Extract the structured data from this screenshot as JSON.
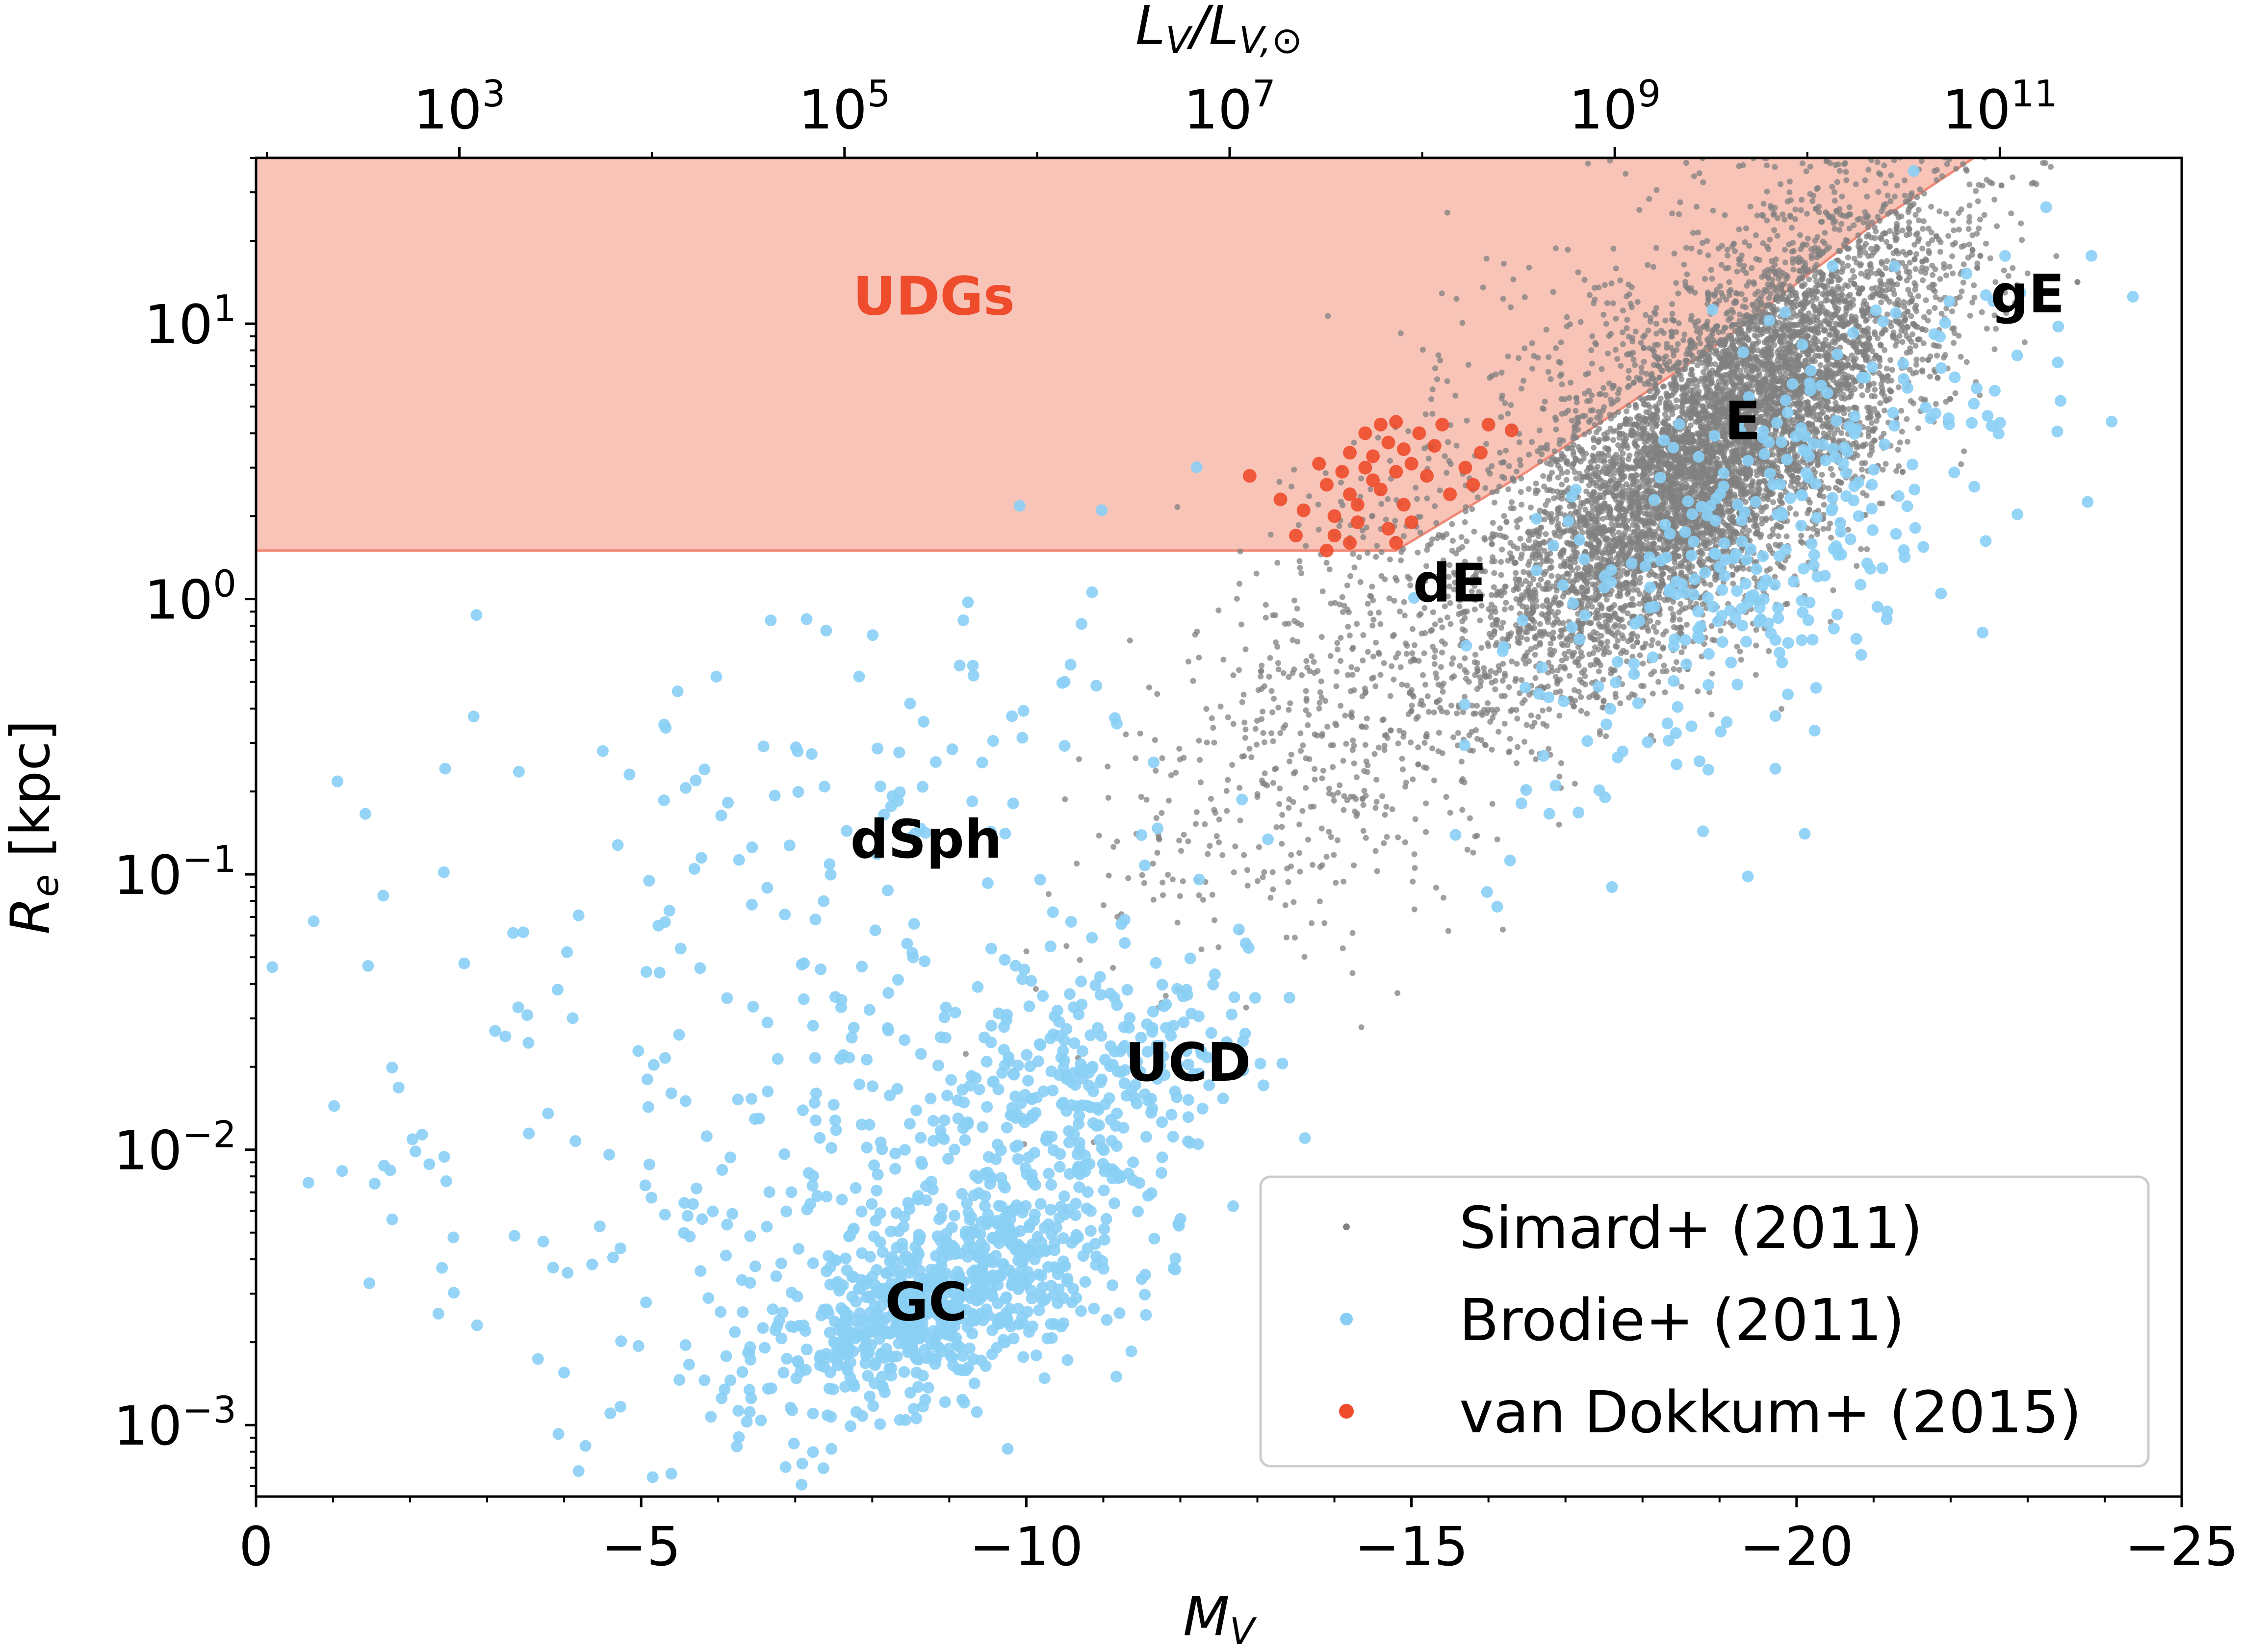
{
  "chart_data": {
    "type": "scatter",
    "xlabel": "M_V",
    "ylabel": "R_e [kpc]",
    "top_xlabel": "L_V/L_V,⊙",
    "xlim": [
      0,
      -25
    ],
    "ylim": [
      0.00055,
      40
    ],
    "yscale": "log",
    "xticks": [
      0,
      -5,
      -10,
      -15,
      -20,
      -25
    ],
    "xtick_labels": [
      "0",
      "−5",
      "−10",
      "−15",
      "−20",
      "−25"
    ],
    "yticks": [
      {
        "value": 10,
        "base": "10",
        "exp": "1"
      },
      {
        "value": 1,
        "base": "10",
        "exp": "0"
      },
      {
        "value": 0.1,
        "base": "10",
        "exp": "−1"
      },
      {
        "value": 0.01,
        "base": "10",
        "exp": "−2"
      },
      {
        "value": 0.001,
        "base": "10",
        "exp": "−3"
      }
    ],
    "top_ticks": [
      {
        "mv": -2.64,
        "base": "10",
        "exp": "3"
      },
      {
        "mv": -7.64,
        "base": "10",
        "exp": "5"
      },
      {
        "mv": -12.64,
        "base": "10",
        "exp": "7"
      },
      {
        "mv": -17.64,
        "base": "10",
        "exp": "9"
      },
      {
        "mv": -22.64,
        "base": "10",
        "exp": "11"
      }
    ],
    "udg_region": {
      "label": "UDGs",
      "color": "#f8c4b8",
      "edge_color": "#f08a78",
      "re_min": 1.5,
      "boundary": [
        [
          0,
          1.5
        ],
        [
          -14.8,
          1.5
        ],
        [
          -16.5,
          2.9
        ],
        [
          -19,
          8.5
        ],
        [
          -21,
          23
        ],
        [
          -22.3,
          40
        ]
      ]
    },
    "region_labels": [
      {
        "text": "UDGs",
        "mv": -8.8,
        "re": 10.8,
        "color": "#ee4c2c"
      },
      {
        "text": "gE",
        "mv": -23.0,
        "re": 11.0,
        "color": "#000000"
      },
      {
        "text": "E",
        "mv": -19.3,
        "re": 3.8,
        "color": "#000000"
      },
      {
        "text": "dE",
        "mv": -15.5,
        "re": 0.98,
        "color": "#000000"
      },
      {
        "text": "dSph",
        "mv": -8.7,
        "re": 0.115,
        "color": "#000000"
      },
      {
        "text": "UCD",
        "mv": -12.1,
        "re": 0.0178,
        "color": "#000000"
      },
      {
        "text": "GC",
        "mv": -8.7,
        "re": 0.0024,
        "color": "#000000"
      }
    ],
    "series": [
      {
        "name": "Simard+ (2011)",
        "color": "#808080",
        "marker": "small-dot",
        "clusters": [
          {
            "mv_center": -19.0,
            "mv_sd": 1.4,
            "logre_center": 0.55,
            "logre_sd": 0.28,
            "slope": 0.22,
            "count": 7000
          },
          {
            "mv_center": -14.5,
            "mv_sd": 1.6,
            "logre_center": -0.3,
            "logre_sd": 0.4,
            "slope": 0.18,
            "count": 700
          },
          {
            "mv_center": -17.5,
            "mv_sd": 2.5,
            "logre_center": 0.9,
            "logre_sd": 0.35,
            "slope": 0.22,
            "count": 400
          }
        ]
      },
      {
        "name": "Brodie+ (2011)",
        "color": "#89cff5",
        "marker": "circle",
        "clusters": [
          {
            "mv_center": -8.9,
            "mv_sd": 1.1,
            "logre_center": -2.55,
            "logre_sd": 0.16,
            "slope": 0.1,
            "count": 650
          },
          {
            "mv_center": -8.5,
            "mv_sd": 2.0,
            "logre_center": -2.1,
            "logre_sd": 0.4,
            "slope": 0.08,
            "count": 350
          },
          {
            "mv_center": -11.0,
            "mv_sd": 1.0,
            "logre_center": -1.75,
            "logre_sd": 0.2,
            "slope": 0.1,
            "count": 200
          },
          {
            "mv_center": -8.5,
            "mv_sd": 2.5,
            "logre_center": -0.85,
            "logre_sd": 0.4,
            "slope": 0.05,
            "count": 120
          },
          {
            "mv_center": -19.5,
            "mv_sd": 1.8,
            "logre_center": 0.2,
            "logre_sd": 0.35,
            "slope": 0.18,
            "count": 350
          },
          {
            "mv_center": -2.5,
            "mv_sd": 2.0,
            "logre_center": -1.9,
            "logre_sd": 0.7,
            "slope": 0.0,
            "count": 60
          }
        ]
      },
      {
        "name": "van Dokkum+ (2015)",
        "color": "#ee4c2c",
        "marker": "circle",
        "points": [
          [
            -12.9,
            2.8
          ],
          [
            -13.3,
            2.3
          ],
          [
            -13.6,
            2.1
          ],
          [
            -13.9,
            2.6
          ],
          [
            -14.0,
            2.0
          ],
          [
            -14.1,
            2.9
          ],
          [
            -14.2,
            2.4
          ],
          [
            -14.3,
            2.2
          ],
          [
            -14.4,
            3.0
          ],
          [
            -14.5,
            2.7
          ],
          [
            -14.6,
            2.5
          ],
          [
            -14.7,
            1.8
          ],
          [
            -14.8,
            1.6
          ],
          [
            -14.2,
            1.6
          ],
          [
            -13.9,
            1.5
          ],
          [
            -14.5,
            3.3
          ],
          [
            -14.6,
            4.3
          ],
          [
            -14.8,
            4.4
          ],
          [
            -15.1,
            4.0
          ],
          [
            -15.3,
            3.6
          ],
          [
            -15.0,
            3.1
          ],
          [
            -15.2,
            2.8
          ],
          [
            -15.5,
            2.4
          ],
          [
            -15.7,
            3.0
          ],
          [
            -15.9,
            3.4
          ],
          [
            -14.9,
            2.2
          ],
          [
            -15.0,
            1.9
          ],
          [
            -14.3,
            1.9
          ],
          [
            -14.0,
            1.7
          ],
          [
            -13.5,
            1.7
          ],
          [
            -14.7,
            3.7
          ],
          [
            -15.4,
            4.3
          ],
          [
            -16.0,
            4.3
          ],
          [
            -16.3,
            4.1
          ],
          [
            -14.4,
            4.0
          ],
          [
            -15.8,
            2.6
          ],
          [
            -14.8,
            2.9
          ],
          [
            -14.2,
            3.4
          ],
          [
            -13.8,
            3.1
          ],
          [
            -14.9,
            3.5
          ]
        ]
      }
    ],
    "legend": {
      "position": "bottom-right",
      "entries": [
        "Simard+ (2011)",
        "Brodie+ (2011)",
        "van Dokkum+ (2015)"
      ]
    }
  }
}
